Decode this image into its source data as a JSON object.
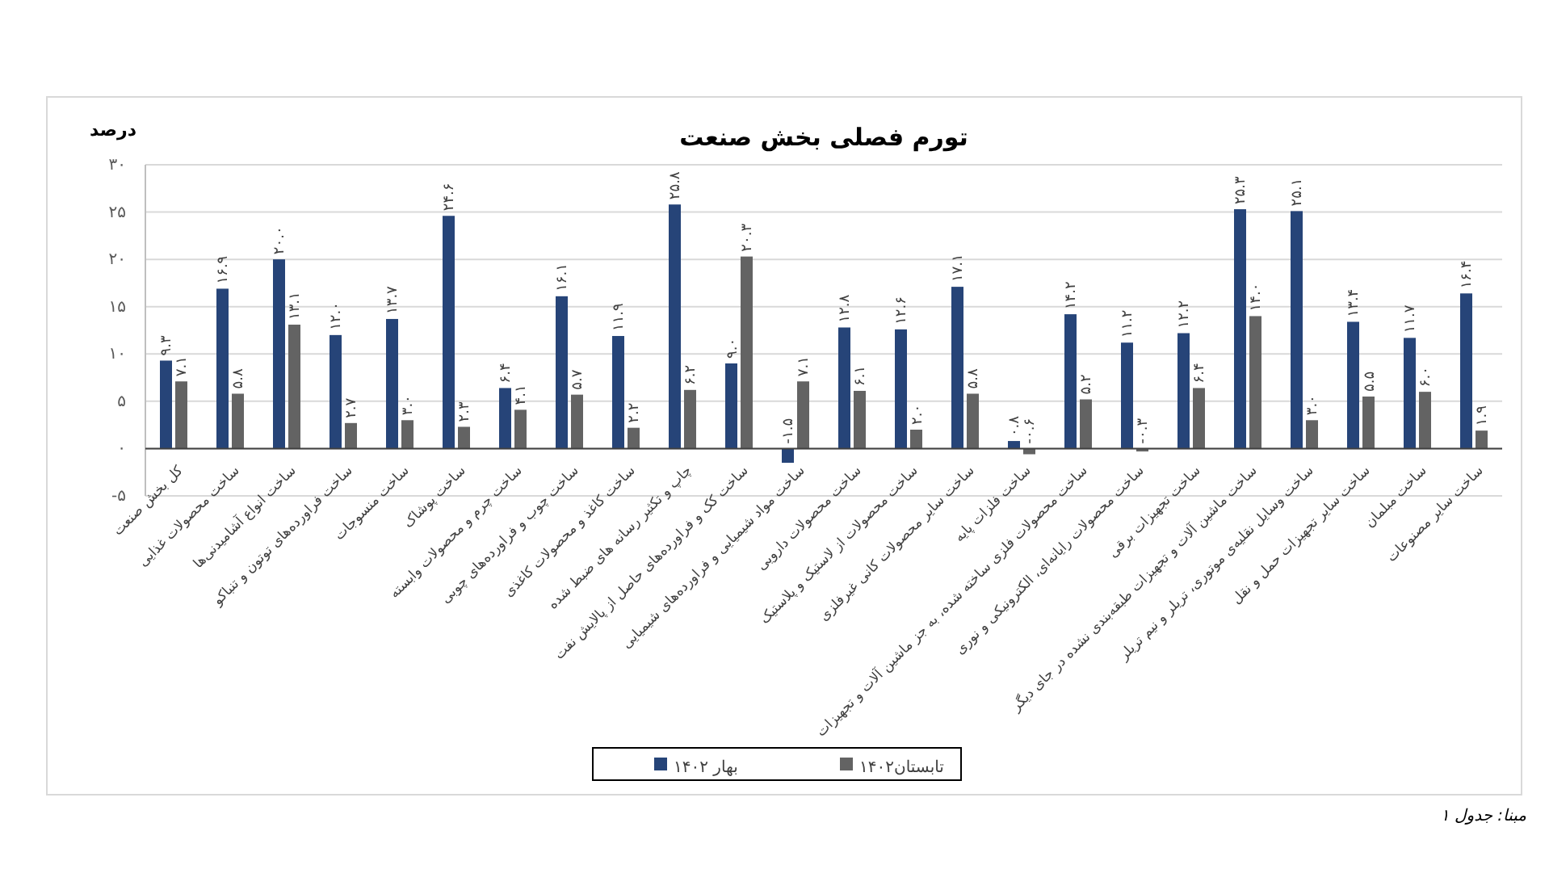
{
  "chart_data": {
    "type": "bar",
    "title": "تورم فصلی بخش صنعت",
    "ylabel": "درصد",
    "categories": [
      "کل بخش صنعت",
      "ساخت محصولات غذایی",
      "ساخت انواع آشامیدنی‌ها",
      "ساخت فراورده‌های توتون و تنباکو",
      "ساخت منسوجات",
      "ساخت پوشاک",
      "ساخت چرم و محصولات وابسته",
      "ساخت چوب و فراورده‌های چوبی",
      "ساخت کاغذ و محصولات کاغذی",
      "چاپ و تکثیر رسانه های ضبط شده",
      "ساخت کک و فراورده‌های حاصل از پالایش نفت",
      "ساخت مواد شیمیایی و فراورده‌های شیمیایی",
      "ساخت محصولات دارویی",
      "ساخت محصولات از لاستیک و پلاستیک",
      "ساخت سایر محصولات کانی غیرفلزی",
      "ساخت فلزات پایه",
      "ساخت محصولات فلزی ساخته شده، به جز ماشین آلات و تجهیزات",
      "ساخت محصولات رایانه‌ای، الکترونیکی و نوری",
      "ساخت تجهیزات برقی",
      "ساخت ماشین آلات و تجهیزات طبقه‌بندی نشده در جای دیگر",
      "ساخت وسایل نقلیه‌ی موتوری، تریلر و نیم تریلر",
      "ساخت سایر تجهیزات حمل و نقل",
      "ساخت مبلمان",
      "ساخت سایر مصنوعات"
    ],
    "series": [
      {
        "name": "بهار ۱۴۰۲",
        "color": "#264478",
        "values": [
          9.3,
          16.9,
          20.0,
          12.0,
          13.7,
          24.6,
          6.4,
          16.1,
          11.9,
          25.8,
          9.0,
          -1.5,
          12.8,
          12.6,
          17.1,
          0.8,
          14.2,
          11.2,
          12.2,
          25.3,
          25.1,
          13.4,
          11.7,
          16.4
        ],
        "value_labels": [
          "۹.۳",
          "۱۶.۹",
          "۲۰.۰",
          "۱۲.۰",
          "۱۳.۷",
          "۲۴.۶",
          "۶.۴",
          "۱۶.۱",
          "۱۱.۹",
          "۲۵.۸",
          "۹.۰",
          "-۱.۵",
          "۱۲.۸",
          "۱۲.۶",
          "۱۷.۱",
          "۰.۸",
          "۱۴.۲",
          "۱۱.۲",
          "۱۲.۲",
          "۲۵.۳",
          "۲۵.۱",
          "۱۳.۴",
          "۱۱.۷",
          "۱۶.۴"
        ]
      },
      {
        "name": "تابستان۱۴۰۲",
        "color": "#636363",
        "values": [
          7.1,
          5.8,
          13.1,
          2.7,
          3.0,
          2.3,
          4.1,
          5.7,
          2.2,
          6.2,
          20.3,
          7.1,
          6.1,
          2.0,
          5.8,
          -0.6,
          5.2,
          -0.3,
          6.4,
          14.0,
          3.0,
          5.5,
          6.0,
          1.9
        ],
        "value_labels": [
          "۷.۱",
          "۵.۸",
          "۱۳.۱",
          "۲.۷",
          "۳.۰",
          "۲.۳",
          "۴.۱",
          "۵.۷",
          "۲.۲",
          "۶.۲",
          "۲۰.۳",
          "۷.۱",
          "۶.۱",
          "۲.۰",
          "۵.۸",
          "-۰.۶",
          "۵.۲",
          "-۰.۳",
          "۶.۴",
          "۱۴.۰",
          "۳.۰",
          "۵.۵",
          "۶.۰",
          "۱.۹"
        ]
      }
    ],
    "ylim": [
      -5,
      30
    ],
    "yticks": [
      {
        "value": -5,
        "label": "-۵"
      },
      {
        "value": 0,
        "label": "۰"
      },
      {
        "value": 5,
        "label": "۵"
      },
      {
        "value": 10,
        "label": "۱۰"
      },
      {
        "value": 15,
        "label": "۱۵"
      },
      {
        "value": 20,
        "label": "۲۰"
      },
      {
        "value": 25,
        "label": "۲۵"
      },
      {
        "value": 30,
        "label": "۳۰"
      }
    ],
    "grid": "y",
    "legend": "bottom",
    "annotations": [
      "مبنا: جدول ۱"
    ]
  }
}
